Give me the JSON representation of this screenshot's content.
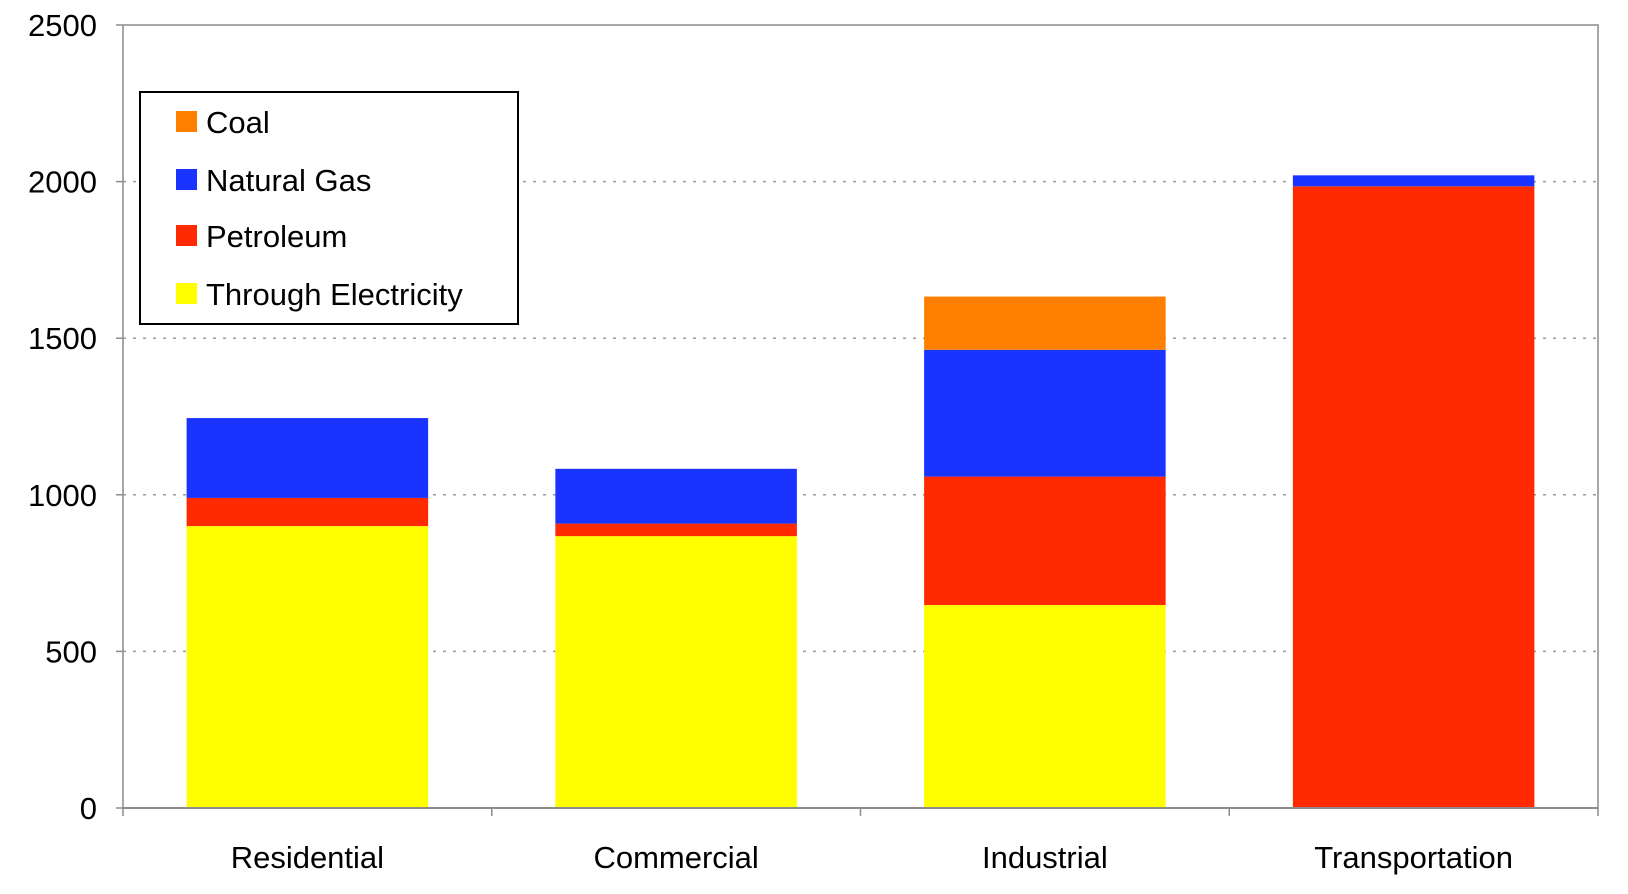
{
  "chart_data": {
    "type": "bar",
    "stacked": true,
    "categories": [
      "Residential",
      "Commercial",
      "Industrial",
      "Transportation"
    ],
    "series": [
      {
        "name": "Through Electricity",
        "color": "#ffff00",
        "values": [
          900,
          868,
          648,
          0
        ]
      },
      {
        "name": "Petroleum",
        "color": "#ff2a00",
        "values": [
          90,
          40,
          410,
          1985
        ]
      },
      {
        "name": "Natural Gas",
        "color": "#1a33ff",
        "values": [
          255,
          175,
          405,
          35
        ]
      },
      {
        "name": "Coal",
        "color": "#ff7f00",
        "values": [
          0,
          0,
          170,
          0
        ]
      }
    ],
    "ylim": [
      0,
      2500
    ],
    "yticks": [
      0,
      500,
      1000,
      1500,
      2000,
      2500
    ],
    "grid": true,
    "legend": {
      "placement": "top-left",
      "order": [
        "Coal",
        "Natural Gas",
        "Petroleum",
        "Through Electricity"
      ]
    }
  }
}
